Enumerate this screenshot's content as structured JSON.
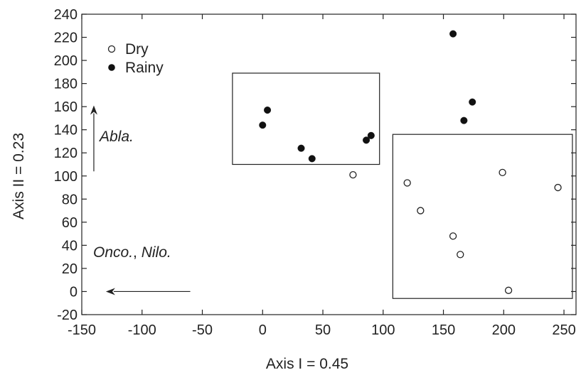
{
  "chart_data": {
    "type": "scatter",
    "title": "",
    "xlabel": "Axis I = 0.45",
    "ylabel": "Axis II = 0.23",
    "xlim": [
      -150,
      260
    ],
    "ylim": [
      -20,
      240
    ],
    "xticks": [
      -150,
      -100,
      -50,
      0,
      50,
      100,
      150,
      200,
      250
    ],
    "yticks": [
      -20,
      0,
      20,
      40,
      60,
      80,
      100,
      120,
      140,
      160,
      180,
      200,
      220,
      240
    ],
    "grid": false,
    "legend_position": "top-left",
    "series": [
      {
        "name": "Dry",
        "marker": "open-circle",
        "points": [
          {
            "x": 75,
            "y": 101
          },
          {
            "x": 120,
            "y": 94
          },
          {
            "x": 131,
            "y": 70
          },
          {
            "x": 158,
            "y": 48
          },
          {
            "x": 164,
            "y": 32
          },
          {
            "x": 199,
            "y": 103
          },
          {
            "x": 204,
            "y": 1
          },
          {
            "x": 245,
            "y": 90
          }
        ]
      },
      {
        "name": "Rainy",
        "marker": "filled-circle",
        "points": [
          {
            "x": 0,
            "y": 144
          },
          {
            "x": 4,
            "y": 157
          },
          {
            "x": 32,
            "y": 124
          },
          {
            "x": 41,
            "y": 115
          },
          {
            "x": 86,
            "y": 131
          },
          {
            "x": 90,
            "y": 135
          },
          {
            "x": 158,
            "y": 223
          },
          {
            "x": 167,
            "y": 148
          },
          {
            "x": 174,
            "y": 164
          }
        ]
      }
    ],
    "boxes": [
      {
        "x0": -25,
        "x1": 97,
        "y0": 110,
        "y1": 189
      },
      {
        "x0": 108,
        "x1": 257,
        "y0": -6,
        "y1": 136
      }
    ],
    "arrows": [
      {
        "from": [
          -140,
          104
        ],
        "to": [
          -140,
          161
        ]
      },
      {
        "from": [
          -60,
          0
        ],
        "to": [
          -130,
          0
        ]
      }
    ],
    "annotations": [
      {
        "text": "Abla.",
        "x": -136,
        "y": 134
      },
      {
        "text_italic": "Onco.",
        "text_sep": ", ",
        "text_italic2": "Nilo.",
        "x": -140,
        "y": 35
      }
    ]
  }
}
